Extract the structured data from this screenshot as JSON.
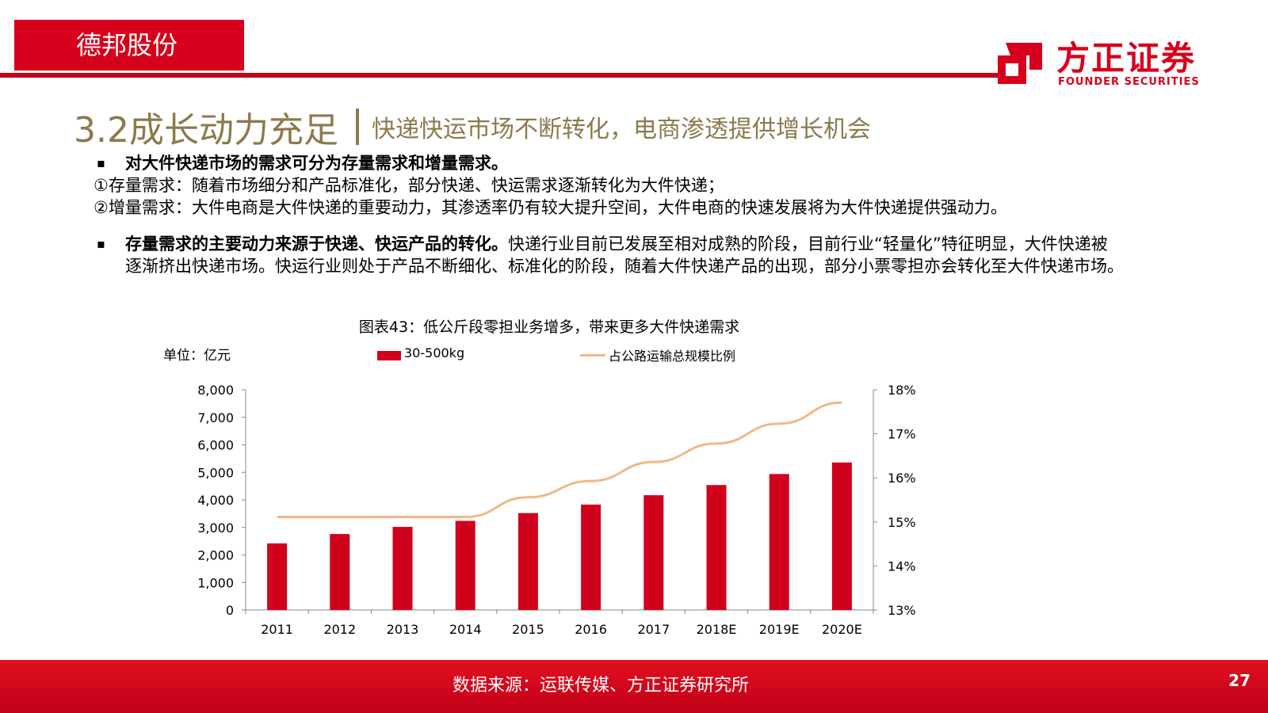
{
  "header": {
    "company_name": "德邦股份",
    "logo_cn": "方正证券",
    "logo_en": "FOUNDER SECURITIES",
    "brand_color": "#d6001c"
  },
  "title": {
    "main": "3.2成长动力充足",
    "sub": "快递快运市场不断转化，电商渗透提供增长机会",
    "color": "#8c7a4c"
  },
  "body": {
    "bullet_char": "▪",
    "p1_bold": "对大件快递市场的需求可分为存量需求和增量需求。",
    "p1_line2": "①存量需求：随着市场细分和产品标准化，部分快递、快运需求逐渐转化为大件快递；",
    "p1_line3": "②增量需求：大件电商是大件快递的重要动力，其渗透率仍有较大提升空间，大件电商的快速发展将为大件快递提供强动力。",
    "p2_bold": "存量需求的主要动力来源于快递、快运产品的转化。",
    "p2_rest": "快递行业目前已发展至相对成熟的阶段，目前行业“轻量化”特征明显，大件快递被逐渐挤出快递市场。快运行业则处于产品不断细化、标准化的阶段，随着大件快递产品的出现，部分小票零担亦会转化至大件快递市场。"
  },
  "chart": {
    "caption": "图表43：低公斤段零担业务增多，带来更多大件快递需求",
    "unit_label": "单位：亿元"
  },
  "chart_data": {
    "type": "bar",
    "categories": [
      "2011",
      "2012",
      "2013",
      "2014",
      "2015",
      "2016",
      "2017",
      "2018E",
      "2019E",
      "2020E"
    ],
    "series": [
      {
        "name": "30-500kg",
        "type": "bar",
        "axis": "left",
        "color": "#d0021b",
        "values": [
          2420,
          2760,
          3020,
          3240,
          3520,
          3830,
          4170,
          4540,
          4940,
          5360
        ]
      },
      {
        "name": "占公路运输总规模比例",
        "type": "line",
        "axis": "right",
        "color": "#f1b886",
        "values": [
          15.11,
          15.11,
          15.11,
          15.11,
          15.56,
          15.93,
          16.36,
          16.78,
          17.23,
          17.71
        ]
      }
    ],
    "y_left": {
      "min": 0,
      "max": 8000,
      "step": 1000,
      "tick_labels": [
        "0",
        "1,000",
        "2,000",
        "3,000",
        "4,000",
        "5,000",
        "6,000",
        "7,000",
        "8,000"
      ]
    },
    "y_right": {
      "min": 13,
      "max": 18,
      "step": 1,
      "tick_labels": [
        "13%",
        "14%",
        "15%",
        "16%",
        "17%",
        "18%"
      ]
    },
    "grid": false,
    "legend_position": "top"
  },
  "footer": {
    "source": "数据来源：运联传媒、方正证券研究所",
    "page_number": "27"
  }
}
